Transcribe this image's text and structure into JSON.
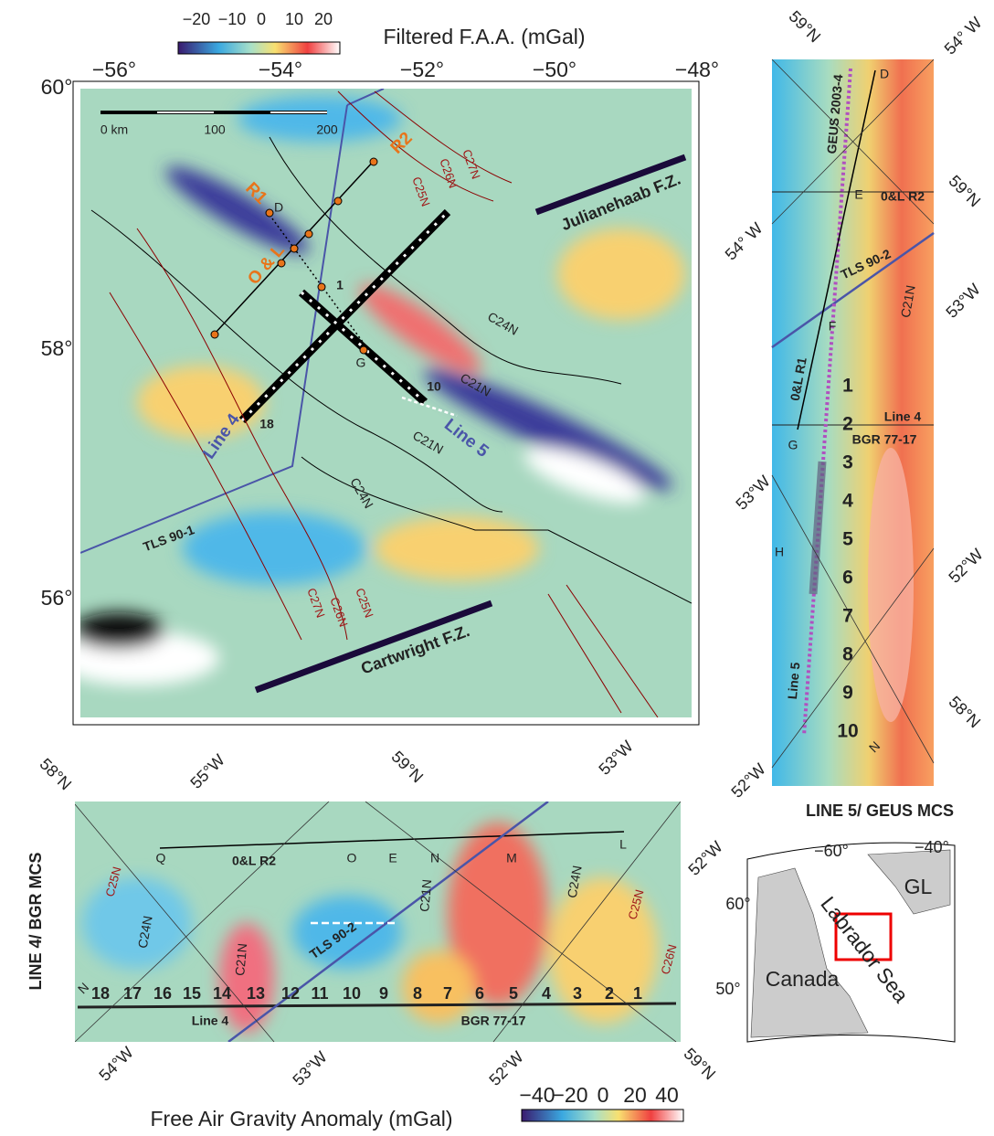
{
  "main_map": {
    "colorbar": {
      "title": "Filtered F.A.A. (mGal)",
      "ticks": [
        "−20",
        "−10",
        "0",
        "10",
        "20"
      ]
    },
    "lon_labels": [
      "−56°",
      "−54°",
      "−52°",
      "−50°",
      "−48°"
    ],
    "lat_labels": [
      "60°",
      "58°",
      "56°"
    ],
    "scale_labels": [
      "0 km",
      "100",
      "200"
    ],
    "track_labels": [
      "R1",
      "R2",
      "O & L",
      "D",
      "1",
      "G",
      "10",
      "18",
      "Line 4",
      "Line 5",
      "TLS 90-1"
    ],
    "fracture_zones": [
      "Julianehaab F.Z.",
      "Cartwright F.Z."
    ],
    "isochrons": [
      "C27N",
      "C26N",
      "C25N",
      "C24N",
      "C21N",
      "C24N",
      "C21N",
      "C27N",
      "C26N",
      "C25N"
    ]
  },
  "line5_panel": {
    "title": "LINE 5/ GEUS MCS",
    "grid_labels": [
      "59°N",
      "54° W",
      "54° W",
      "59°N",
      "53°W",
      "53°W",
      "52°W",
      "52°W",
      "58°N"
    ],
    "track_labels": [
      "GEUS 2003-4",
      "D",
      "E",
      "0&L R2",
      "TLS 90-2",
      "C21N",
      "F",
      "0&L R1",
      "Line 4",
      "BGR 77-17",
      "G",
      "H",
      "Line 5",
      "N"
    ],
    "shotpoints": [
      "1",
      "2",
      "3",
      "4",
      "5",
      "6",
      "7",
      "8",
      "9",
      "10"
    ]
  },
  "line4_panel": {
    "title": "LINE 4/ BGR MCS",
    "grid_labels": [
      "58°N",
      "55°W",
      "59°N",
      "53°W",
      "52°W",
      "54°W",
      "53°W",
      "52°W",
      "59°N"
    ],
    "track_labels": [
      "Q",
      "O",
      "E",
      "N",
      "M",
      "L",
      "0&L R2",
      "TLS 90-2",
      "Line 4",
      "BGR 77-17",
      "N"
    ],
    "isochrons": [
      "C25N",
      "C24N",
      "C21N",
      "C21N",
      "C24N",
      "C25N",
      "C26N"
    ],
    "shotpoints": [
      "18",
      "17",
      "16",
      "15",
      "14",
      "13",
      "12",
      "11",
      "10",
      "9",
      "8",
      "7",
      "6",
      "5",
      "4",
      "3",
      "2",
      "1"
    ],
    "colorbar": {
      "title": "Free Air Gravity Anomaly (mGal)",
      "ticks": [
        "−40",
        "−20",
        "0",
        "20",
        "40"
      ]
    }
  },
  "inset_map": {
    "lon_labels": [
      "−60°",
      "−40°"
    ],
    "lat_labels": [
      "60°",
      "50°"
    ],
    "region_labels": [
      "GL",
      "Canada",
      "Labrador Sea"
    ]
  }
}
